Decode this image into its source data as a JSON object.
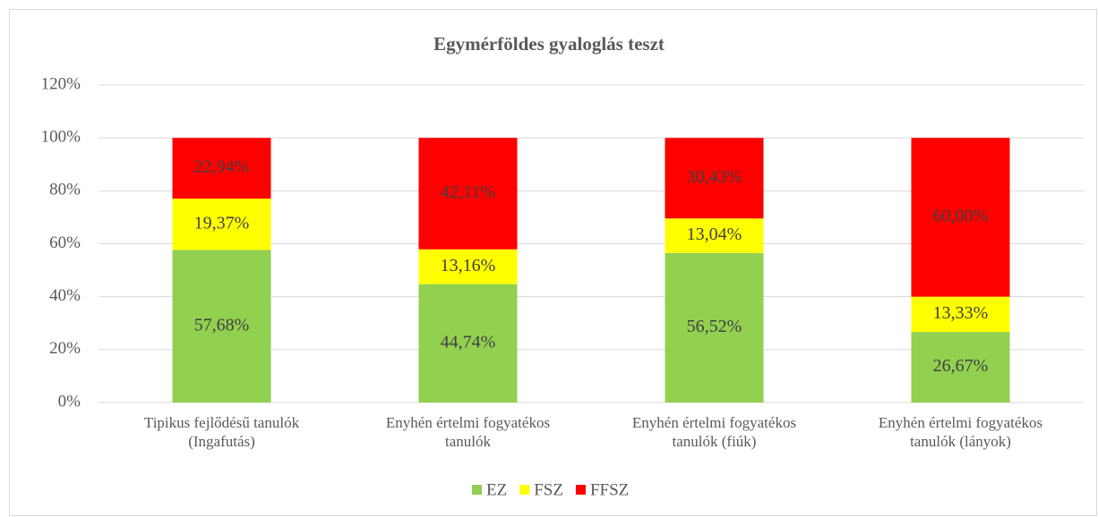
{
  "chart_data": {
    "type": "stacked_bar",
    "title": "Egymérföldes gyaloglás teszt",
    "categories": [
      "Tipikus fejlődésű tanulók\n(Ingafutás)",
      "Enyhén értelmi fogyatékos\ntanulók",
      "Enyhén értelmi fogyatékos\ntanulók (fiúk)",
      "Enyhén értelmi fogyatékos\ntanulók (lányok)"
    ],
    "series": [
      {
        "name": "EZ",
        "color": "#92d050",
        "values": [
          57.68,
          44.74,
          56.52,
          26.67
        ],
        "value_labels": [
          "57,68%",
          "44,74%",
          "56,52%",
          "26,67%"
        ]
      },
      {
        "name": "FSZ",
        "color": "#ffff00",
        "values": [
          19.37,
          13.16,
          13.04,
          13.33
        ],
        "value_labels": [
          "19,37%",
          "13,16%",
          "13,04%",
          "13,33%"
        ]
      },
      {
        "name": "FFSZ",
        "color": "#ff0000",
        "values": [
          22.94,
          42.11,
          30.43,
          60.0
        ],
        "value_labels": [
          "22,94%",
          "42,11%",
          "30,43%",
          "60,00%"
        ]
      }
    ],
    "ylim": [
      0,
      120
    ],
    "yticks": [
      {
        "value": 0,
        "label": "0%"
      },
      {
        "value": 20,
        "label": "20%"
      },
      {
        "value": 40,
        "label": "40%"
      },
      {
        "value": 60,
        "label": "60%"
      },
      {
        "value": 80,
        "label": "80%"
      },
      {
        "value": 100,
        "label": "100%"
      },
      {
        "value": 120,
        "label": "120%"
      }
    ],
    "grid": true,
    "legend": "bottom"
  }
}
